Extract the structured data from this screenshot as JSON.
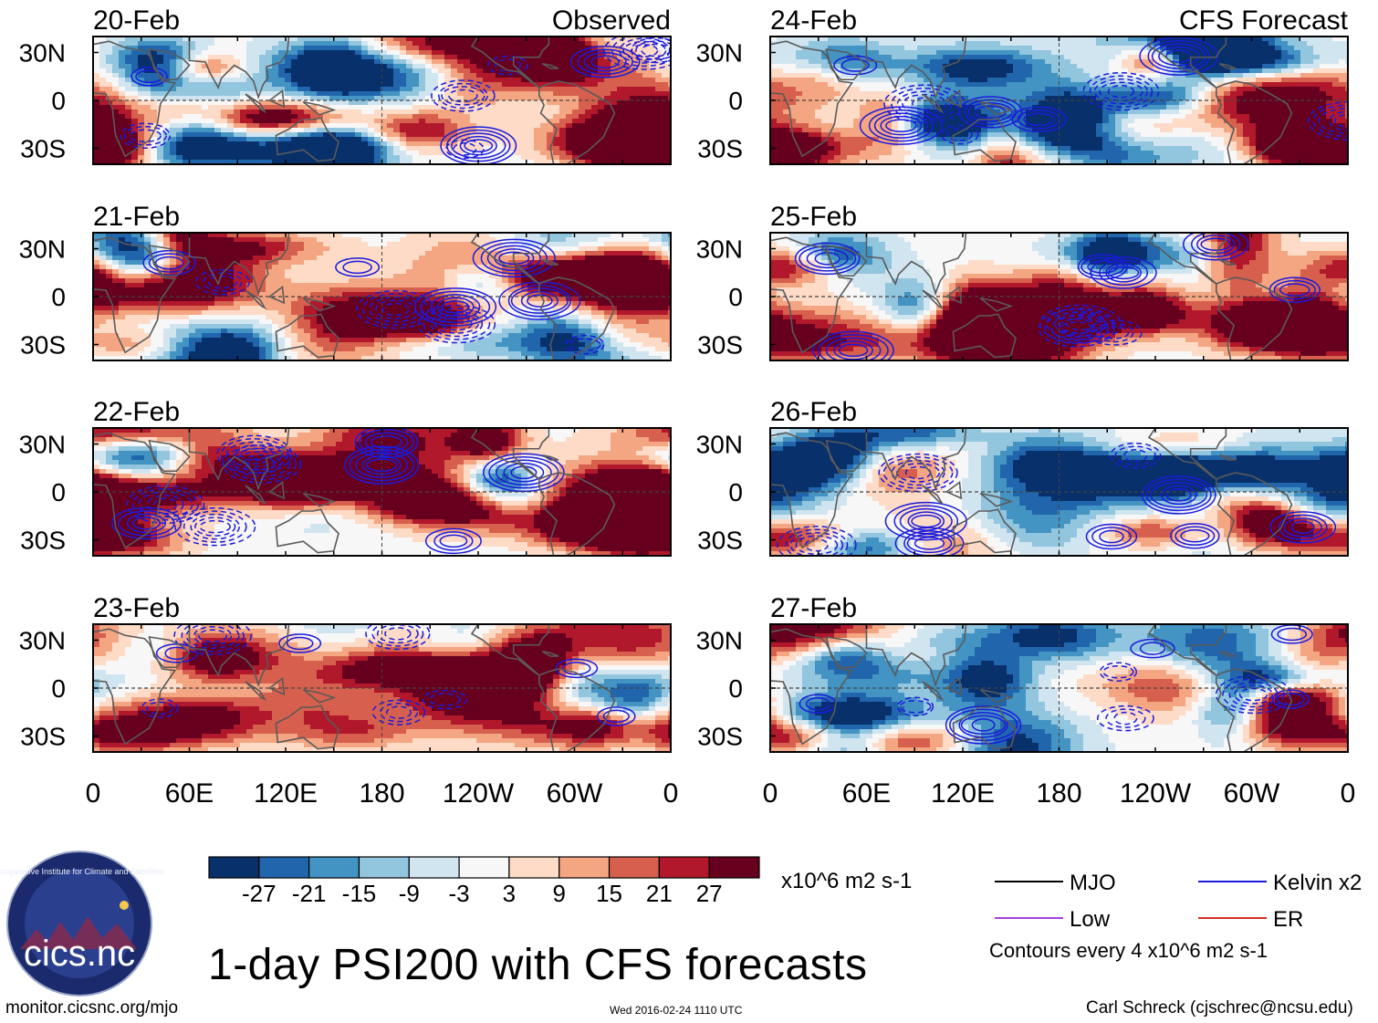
{
  "figure": {
    "title": "1-day PSI200 with CFS forecasts",
    "observed_label": "Observed",
    "forecast_label": "CFS Forecast",
    "website": "monitor.cicsnc.org/mjo",
    "timestamp": "Wed 2016-02-24 1110 UTC",
    "author": "Carl Schreck (cjschrec@ncsu.edu)"
  },
  "logo": {
    "text": "cics.nc",
    "ring_text": "Cooperative Institute for Climate and Satellites"
  },
  "colors": {
    "shading": [
      "#08306b",
      "#2166ac",
      "#4393c3",
      "#92c5de",
      "#d1e5f0",
      "#f7f7f7",
      "#fddbc7",
      "#f4a582",
      "#d6604d",
      "#b2182b",
      "#67001f"
    ],
    "contour_kelvin": "#1b1bdc",
    "legend_mjo": "#000000",
    "legend_low": "#a040e0",
    "legend_er": "#d03020",
    "land": "#5a5a5a",
    "equator": "#444444"
  },
  "chart_data": {
    "type": "heatmap",
    "variable": "PSI200 anomaly",
    "units": "x10^6 m2 s-1",
    "contour_interval_text": "Contours every 4 x10^6 m2 s-1",
    "colorbar_levels": [
      -27,
      -21,
      -15,
      -9,
      -3,
      3,
      9,
      15,
      21,
      27
    ],
    "colorbar_labels": [
      "-27",
      "-21",
      "-15",
      "-9",
      "-3",
      "3",
      "9",
      "15",
      "21",
      "27"
    ],
    "xticks": [
      "0",
      "60E",
      "120E",
      "180",
      "120W",
      "60W",
      "0"
    ],
    "yticks": [
      "30N",
      "0",
      "30S"
    ],
    "xlim": [
      0,
      360
    ],
    "ylim": [
      -40,
      40
    ],
    "panels": [
      {
        "date": "20-Feb",
        "column": "observed"
      },
      {
        "date": "21-Feb",
        "column": "observed"
      },
      {
        "date": "22-Feb",
        "column": "observed"
      },
      {
        "date": "23-Feb",
        "column": "observed"
      },
      {
        "date": "24-Feb",
        "column": "forecast"
      },
      {
        "date": "25-Feb",
        "column": "forecast"
      },
      {
        "date": "26-Feb",
        "column": "forecast"
      },
      {
        "date": "27-Feb",
        "column": "forecast"
      }
    ],
    "legend": [
      {
        "name": "MJO",
        "color": "#000000"
      },
      {
        "name": "Kelvin x2",
        "color": "#1b1bdc"
      },
      {
        "name": "Low",
        "color": "#a040e0"
      },
      {
        "name": "ER",
        "color": "#d03020"
      }
    ]
  }
}
